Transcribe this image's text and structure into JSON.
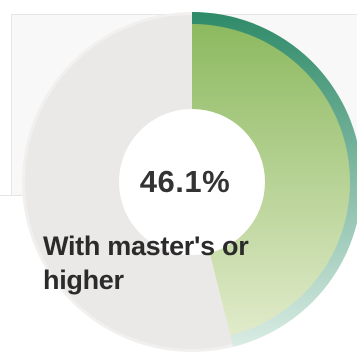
{
  "chart_data": {
    "type": "pie",
    "variant": "donut",
    "values": [
      46.1
    ],
    "value_label": "46.1%",
    "caption": "With master's or higher",
    "colors": {
      "fill_start": "#8ab85c",
      "fill_end": "#e3eccd",
      "outer_start": "#2e8a68",
      "outer_end": "#d9ece4",
      "remainder": "#ebe9e8",
      "outer_track": "#f1f0ef",
      "hole": "#ffffff"
    }
  }
}
